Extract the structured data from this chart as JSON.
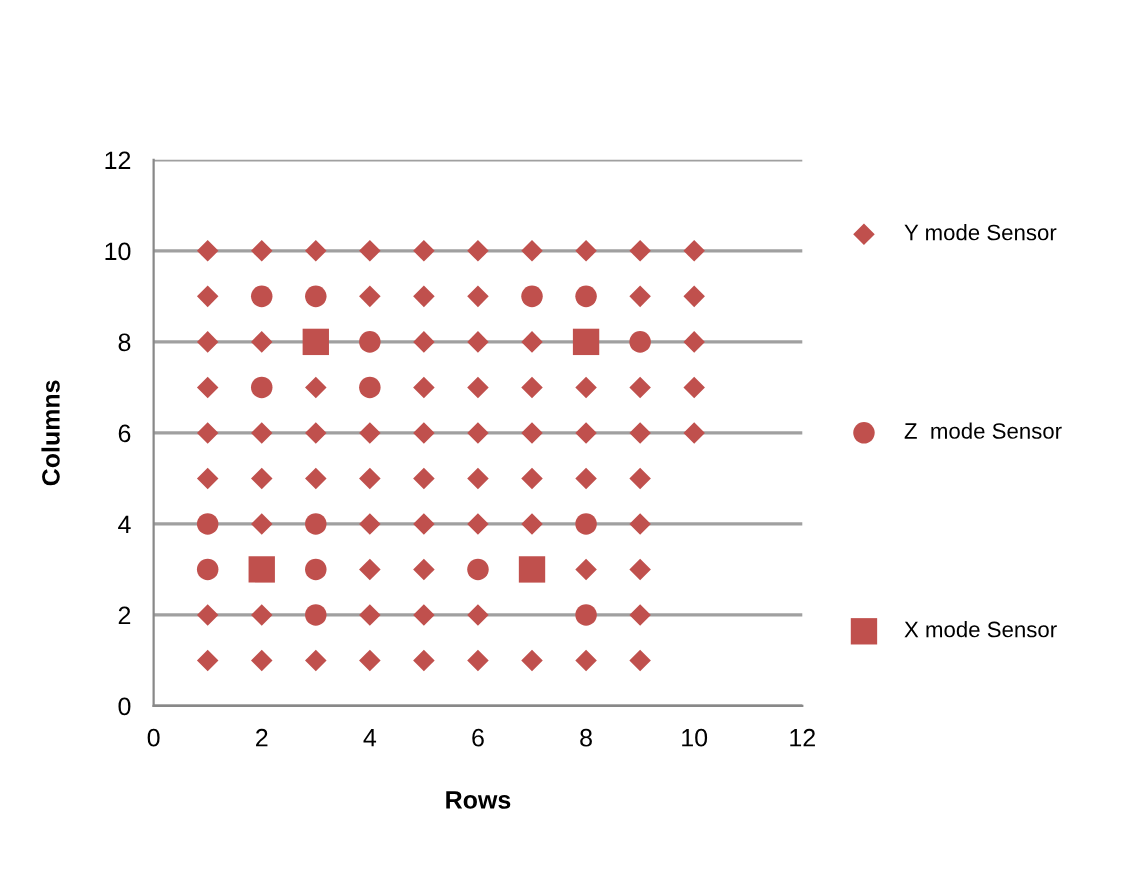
{
  "chart_data": {
    "type": "scatter",
    "xlabel": "Rows",
    "ylabel": "Columns",
    "xlim": [
      0,
      12
    ],
    "ylim": [
      0,
      12
    ],
    "xticks": [
      0,
      2,
      4,
      6,
      8,
      10,
      12
    ],
    "yticks": [
      0,
      2,
      4,
      6,
      8,
      10,
      12
    ],
    "grid": "y",
    "legend": "right",
    "series": [
      {
        "name": "Y mode Sensor",
        "color": "#c0504d",
        "marker": "diamond",
        "x": [
          1,
          2,
          3,
          4,
          5,
          6,
          7,
          8,
          9,
          10,
          1,
          4,
          5,
          6,
          9,
          10,
          1,
          2,
          5,
          6,
          7,
          10,
          1,
          3,
          5,
          6,
          7,
          8,
          9,
          10,
          1,
          2,
          3,
          4,
          5,
          6,
          7,
          8,
          9,
          10,
          1,
          2,
          3,
          4,
          5,
          6,
          7,
          8,
          9,
          2,
          4,
          5,
          6,
          7,
          9,
          4,
          5,
          8,
          9,
          1,
          2,
          4,
          5,
          6,
          9,
          1,
          2,
          3,
          4,
          5,
          6,
          7,
          8,
          9
        ],
        "values": [
          10,
          10,
          10,
          10,
          10,
          10,
          10,
          10,
          10,
          10,
          9,
          9,
          9,
          9,
          9,
          9,
          8,
          8,
          8,
          8,
          8,
          8,
          7,
          7,
          7,
          7,
          7,
          7,
          7,
          7,
          6,
          6,
          6,
          6,
          6,
          6,
          6,
          6,
          6,
          6,
          5,
          5,
          5,
          5,
          5,
          5,
          5,
          5,
          5,
          4,
          4,
          4,
          4,
          4,
          4,
          3,
          3,
          3,
          3,
          2,
          2,
          2,
          2,
          2,
          2,
          1,
          1,
          1,
          1,
          1,
          1,
          1,
          1,
          1
        ]
      },
      {
        "name": "Z  mode Sensor",
        "color": "#c0504d",
        "marker": "circle",
        "x": [
          2,
          3,
          7,
          8,
          4,
          9,
          2,
          4,
          1,
          3,
          8,
          1,
          3,
          6,
          3,
          8
        ],
        "values": [
          9,
          9,
          9,
          9,
          8,
          8,
          7,
          7,
          4,
          4,
          4,
          3,
          3,
          3,
          2,
          2
        ]
      },
      {
        "name": "X mode Sensor",
        "color": "#c0504d",
        "marker": "square",
        "x": [
          3,
          8,
          2,
          7
        ],
        "values": [
          8,
          8,
          3,
          3
        ]
      }
    ]
  }
}
